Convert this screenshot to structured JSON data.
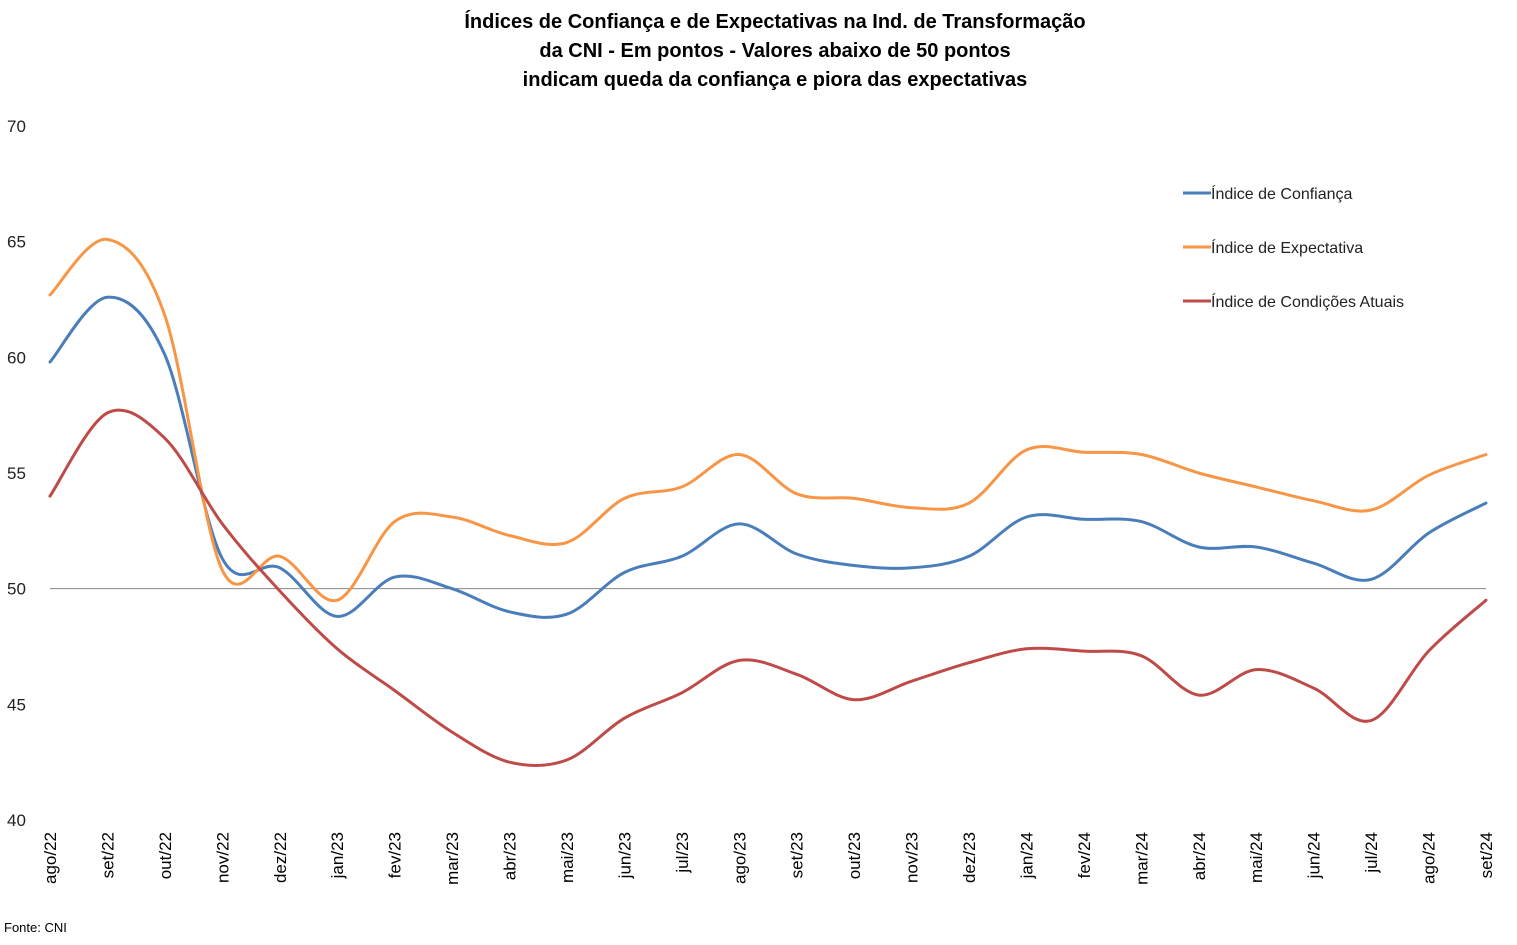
{
  "chart_data": {
    "type": "line",
    "title_lines": [
      "Índices de Confiança e de Expectativas na Ind. de Transformação",
      "da CNI - Em pontos - Valores abaixo de 50 pontos",
      "indicam queda da confiança e piora das expectativas"
    ],
    "x": [
      "ago/22",
      "set/22",
      "out/22",
      "nov/22",
      "dez/22",
      "jan/23",
      "fev/23",
      "mar/23",
      "abr/23",
      "mai/23",
      "jun/23",
      "jul/23",
      "ago/23",
      "set/23",
      "out/23",
      "nov/23",
      "dez/23",
      "jan/24",
      "fev/24",
      "mar/24",
      "abr/24",
      "mai/24",
      "jun/24",
      "jul/24",
      "ago/24",
      "set/24"
    ],
    "yticks": [
      40,
      45,
      50,
      55,
      60,
      65,
      70
    ],
    "ylim": [
      40,
      70
    ],
    "reference_line": 50,
    "grid": false,
    "legend_position": "top-right",
    "series": [
      {
        "name": "Índice de Confiança",
        "color": "#4a7ebb",
        "values": [
          59.8,
          62.6,
          60.1,
          51.3,
          50.9,
          48.8,
          50.5,
          50.0,
          49.0,
          48.9,
          50.7,
          51.4,
          52.8,
          51.5,
          51.0,
          50.9,
          51.4,
          53.1,
          53.0,
          52.9,
          51.8,
          51.8,
          51.1,
          50.4,
          52.4,
          53.7
        ]
      },
      {
        "name": "Índice de Expectativa",
        "color": "#f79646",
        "values": [
          62.7,
          65.1,
          61.8,
          50.8,
          51.4,
          49.5,
          52.9,
          53.1,
          52.3,
          52.0,
          53.9,
          54.4,
          55.8,
          54.1,
          53.9,
          53.5,
          53.7,
          56.0,
          55.9,
          55.8,
          55.0,
          54.4,
          53.8,
          53.4,
          54.9,
          55.8
        ]
      },
      {
        "name": "Índice de Condições Atuais",
        "color": "#be4b48",
        "values": [
          54.0,
          57.6,
          56.5,
          52.8,
          49.9,
          47.4,
          45.6,
          43.8,
          42.5,
          42.6,
          44.4,
          45.5,
          46.9,
          46.3,
          45.2,
          46.0,
          46.8,
          47.4,
          47.3,
          47.1,
          45.4,
          46.5,
          45.7,
          44.3,
          47.3,
          49.5
        ]
      }
    ],
    "source": "Fonte: CNI"
  }
}
